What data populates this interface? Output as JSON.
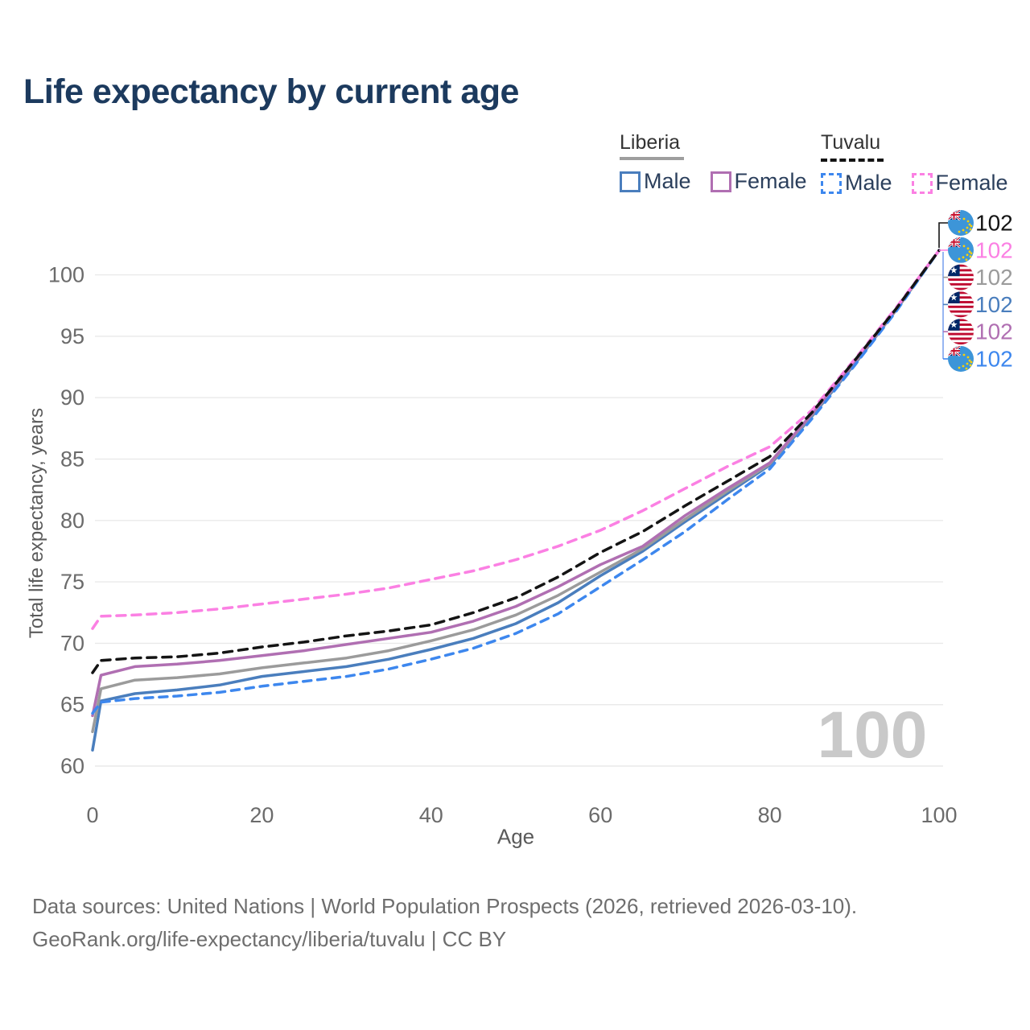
{
  "title": "Life expectancy by current age",
  "legend": {
    "liberia": "Liberia",
    "tuvalu": "Tuvalu",
    "male": "Male",
    "female": "Female"
  },
  "watermark": "100",
  "footer": {
    "line1": "Data sources: United Nations | World Population Prospects (2026, retrieved 2026-03-10).",
    "line2": "GeoRank.org/life-expectancy/liberia/tuvalu | CC BY"
  },
  "colors": {
    "title_text": "#1c3a5e",
    "tick_text": "#6b6b6b",
    "gridline": "#e9e9e9",
    "watermark_text": "#c9c9c9",
    "bracket": "#7da4ee",
    "liberia_male": "#4a7ebd",
    "liberia_female": "#b06fb2",
    "liberia_both": "#9b9b9b",
    "tuvalu_male": "#3d87ee",
    "tuvalu_female": "#fb80e3",
    "tuvalu_both": "#141414"
  },
  "chart_data": {
    "type": "line",
    "title": "Life expectancy by current age",
    "xlabel": "Age",
    "ylabel": "Total life expectancy, years",
    "x_ticks": [
      0,
      20,
      40,
      60,
      80,
      100
    ],
    "y_ticks": [
      60,
      65,
      70,
      75,
      80,
      85,
      90,
      95,
      100
    ],
    "xlim": [
      0,
      100
    ],
    "ylim": [
      58,
      103
    ],
    "grid": "horizontal",
    "legend_position": "top-right",
    "ages": [
      0,
      1,
      5,
      10,
      15,
      20,
      25,
      30,
      35,
      40,
      45,
      50,
      55,
      60,
      65,
      70,
      75,
      80,
      85,
      90,
      95,
      100
    ],
    "series": [
      {
        "id": "liberia-male",
        "country": "Liberia",
        "sex": "Male",
        "flag": "liberia",
        "color": "#4a7ebd",
        "dash": null,
        "label_row": 3,
        "end_label": "102",
        "values": [
          61.3,
          65.3,
          65.9,
          66.2,
          66.6,
          67.3,
          67.7,
          68.1,
          68.7,
          69.5,
          70.4,
          71.6,
          73.3,
          75.5,
          77.5,
          79.9,
          82.2,
          84.5,
          88.5,
          92.7,
          97.2,
          102
        ]
      },
      {
        "id": "liberia-both",
        "country": "Liberia",
        "sex": "Both",
        "flag": "liberia",
        "color": "#9b9b9b",
        "dash": null,
        "label_row": 2,
        "end_label": "102",
        "values": [
          62.8,
          66.3,
          67.0,
          67.2,
          67.5,
          68.0,
          68.4,
          68.8,
          69.4,
          70.2,
          71.1,
          72.3,
          73.9,
          75.8,
          77.7,
          80.1,
          82.4,
          84.6,
          88.6,
          92.8,
          97.2,
          102
        ]
      },
      {
        "id": "liberia-female",
        "country": "Liberia",
        "sex": "Female",
        "flag": "liberia",
        "color": "#b06fb2",
        "dash": null,
        "label_row": 4,
        "end_label": "102",
        "values": [
          64.1,
          67.4,
          68.1,
          68.3,
          68.6,
          69.0,
          69.4,
          69.9,
          70.4,
          70.9,
          71.8,
          73.0,
          74.6,
          76.4,
          77.9,
          80.4,
          82.6,
          84.7,
          88.7,
          92.9,
          97.3,
          102
        ]
      },
      {
        "id": "tuvalu-male",
        "country": "Tuvalu",
        "sex": "Male",
        "flag": "tuvalu",
        "color": "#3d87ee",
        "dash": "10 8",
        "label_row": 5,
        "end_label": "102",
        "values": [
          64.3,
          65.2,
          65.5,
          65.7,
          66.0,
          66.5,
          66.9,
          67.3,
          67.9,
          68.7,
          69.6,
          70.8,
          72.4,
          74.6,
          76.8,
          79.1,
          81.7,
          84.2,
          88.3,
          92.6,
          97.1,
          102
        ]
      },
      {
        "id": "tuvalu-female",
        "country": "Tuvalu",
        "sex": "Female",
        "flag": "tuvalu",
        "color": "#fb80e3",
        "dash": "11 8",
        "label_row": 1,
        "end_label": "102",
        "values": [
          71.2,
          72.2,
          72.3,
          72.5,
          72.8,
          73.2,
          73.6,
          74.0,
          74.5,
          75.2,
          75.9,
          76.8,
          77.9,
          79.2,
          80.8,
          82.6,
          84.4,
          86.0,
          89.0,
          93.1,
          97.4,
          102
        ]
      },
      {
        "id": "tuvalu-both",
        "country": "Tuvalu",
        "sex": "Both",
        "flag": "tuvalu",
        "color": "#141414",
        "dash": "11 8",
        "label_row": 0,
        "end_label": "102",
        "values": [
          67.6,
          68.6,
          68.8,
          68.9,
          69.2,
          69.7,
          70.1,
          70.6,
          71.0,
          71.5,
          72.5,
          73.7,
          75.4,
          77.4,
          79.1,
          81.2,
          83.2,
          85.2,
          88.8,
          93.0,
          97.3,
          102
        ]
      }
    ]
  }
}
